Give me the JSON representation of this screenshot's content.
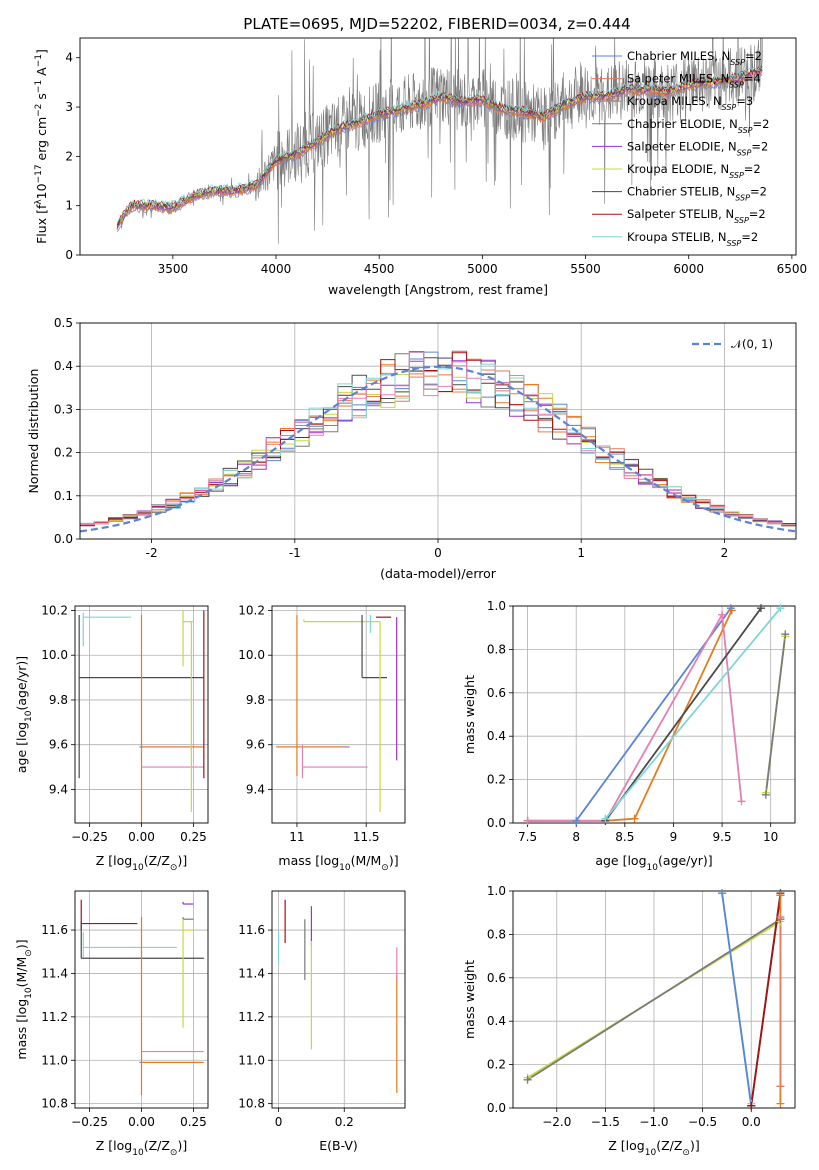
{
  "figure": {
    "title": "PLATE=0695, MJD=52202, FIBERID=0034, z=0.444"
  },
  "colors": {
    "Chabrier MILES": "#5b84d6",
    "Salpeter MILES": "#ea7a58",
    "Kroupa MILES": "#e87a1e",
    "Chabrier ELODIE": "#7a7a7a",
    "Salpeter ELODIE": "#9933cc",
    "Kroupa ELODIE": "#c8d840",
    "Chabrier STELIB": "#4a4a4a",
    "Salpeter STELIB": "#aa1111",
    "Kroupa STELIB": "#7fd6d6",
    "pink": "#e57fb3",
    "normal": "#5b84d6"
  },
  "chart_data": [
    {
      "id": "spectrum",
      "type": "line",
      "title": "PLATE=0695, MJD=52202, FIBERID=0034, z=0.444",
      "xlabel": "wavelength [Angstrom, rest frame]",
      "ylabel_parts": [
        "Flux [f",
        "λ",
        "10",
        "−17",
        " erg cm",
        "−2",
        " s",
        "−1",
        " A",
        "−1",
        "]"
      ],
      "xlim": [
        3050,
        6520
      ],
      "ylim": [
        0,
        4.4
      ],
      "xticks": [
        3500,
        4000,
        4500,
        5000,
        5500,
        6000,
        6500
      ],
      "yticks": [
        0,
        1,
        2,
        3,
        4
      ],
      "grid": false,
      "legend_position": "upper right",
      "legend": [
        {
          "name": "Chabrier MILES",
          "nssp": "2"
        },
        {
          "name": "Salpeter MILES",
          "nssp": "4"
        },
        {
          "name": "Kroupa MILES",
          "nssp": "3"
        },
        {
          "name": "Chabrier ELODIE",
          "nssp": "2"
        },
        {
          "name": "Salpeter ELODIE",
          "nssp": "2"
        },
        {
          "name": "Kroupa ELODIE",
          "nssp": "2"
        },
        {
          "name": "Chabrier STELIB",
          "nssp": "2"
        },
        {
          "name": "Salpeter STELIB",
          "nssp": "2"
        },
        {
          "name": "Kroupa STELIB",
          "nssp": "2"
        }
      ],
      "data_wavelength": [
        3230,
        3300,
        3400,
        3500,
        3600,
        3700,
        3800,
        3900,
        4000,
        4100,
        4200,
        4300,
        4400,
        4500,
        4600,
        4700,
        4800,
        4900,
        5000,
        5100,
        5200,
        5300,
        5400,
        5500,
        5600,
        5700,
        5800,
        5900,
        6000,
        6100,
        6200,
        6300,
        6360
      ],
      "data_flux": [
        0.6,
        1.0,
        1.0,
        0.9,
        1.2,
        1.3,
        1.3,
        1.4,
        1.9,
        2.1,
        2.3,
        2.6,
        2.7,
        2.9,
        3.0,
        3.1,
        3.3,
        3.1,
        3.2,
        3.0,
        2.9,
        2.8,
        3.1,
        3.3,
        3.2,
        3.4,
        3.4,
        3.3,
        3.5,
        3.5,
        3.6,
        3.7,
        3.8
      ],
      "model_wavelength": [
        3230,
        3300,
        3400,
        3500,
        3600,
        3700,
        3800,
        3900,
        4000,
        4100,
        4200,
        4300,
        4400,
        4500,
        4600,
        4700,
        4800,
        4900,
        5000,
        5100,
        5200,
        5300,
        5400,
        5500,
        5600,
        5700,
        5800,
        5900,
        6000,
        6100,
        6200,
        6300,
        6360
      ],
      "model_flux": [
        0.6,
        1.0,
        1.0,
        0.95,
        1.2,
        1.3,
        1.3,
        1.4,
        1.9,
        2.05,
        2.3,
        2.55,
        2.7,
        2.85,
        2.95,
        3.05,
        3.2,
        3.1,
        3.15,
        2.95,
        2.9,
        2.8,
        3.05,
        3.2,
        3.2,
        3.35,
        3.35,
        3.3,
        3.45,
        3.5,
        3.55,
        3.65,
        3.75
      ]
    },
    {
      "id": "residuals",
      "type": "histogram",
      "xlabel": "(data-model)/error",
      "ylabel": "Normed distribution",
      "xlim": [
        -2.5,
        2.5
      ],
      "ylim": [
        0,
        0.5
      ],
      "xticks": [
        -2,
        -1,
        0,
        1,
        2
      ],
      "yticks": [
        0.0,
        0.1,
        0.2,
        0.3,
        0.4,
        0.5
      ],
      "grid": true,
      "legend_position": "upper right",
      "legend": [
        {
          "name": "𝒩(0, 1)",
          "style": "dashed"
        }
      ],
      "bin_width": 0.1,
      "bin_start": -2.5,
      "curve": {
        "mean": 0,
        "sigma": 1
      }
    },
    {
      "id": "age_vs_Z",
      "type": "errorbar",
      "xlabel_parts": [
        "Z [log",
        "10",
        "(Z/Z",
        "⊙",
        ")]"
      ],
      "ylabel_parts": [
        "age  [log",
        "10",
        "(age/yr)]"
      ],
      "xlim": [
        -0.32,
        0.32
      ],
      "ylim": [
        9.25,
        10.22
      ],
      "xticks": [
        -0.25,
        0.0,
        0.25
      ],
      "xticklabels": [
        "−0.25",
        "0.00",
        "0.25"
      ],
      "yticks": [
        9.4,
        9.6,
        9.8,
        10.0,
        10.2
      ],
      "grid": true,
      "points": [
        {
          "series": "Chabrier STELIB",
          "x": -0.3,
          "xerr": [
            0,
            0.6
          ],
          "y": 9.9,
          "yerr": [
            0.45,
            0.28
          ]
        },
        {
          "series": "Kroupa STELIB",
          "x": -0.28,
          "xerr": [
            0,
            0.23
          ],
          "y": 10.17,
          "yerr": [
            0.13,
            0.02
          ]
        },
        {
          "series": "Chabrier MILES",
          "x": -0.01,
          "xerr": [
            0,
            0.3
          ],
          "y": 9.59,
          "yerr": [
            0,
            0
          ]
        },
        {
          "series": "Kroupa MILES",
          "x": 0.0,
          "xerr": [
            0,
            0.3
          ],
          "y": 9.59,
          "yerr": [
            0.45,
            0.59
          ]
        },
        {
          "series": "pink",
          "x": 0.0,
          "xerr": [
            0,
            0.3
          ],
          "y": 9.5,
          "yerr": [
            0,
            0
          ]
        },
        {
          "series": "Kroupa ELODIE",
          "x": 0.2,
          "xerr": [
            0,
            0.05
          ],
          "y": 10.15,
          "yerr": [
            0.2,
            0.05
          ]
        },
        {
          "series": "Salpeter STELIB",
          "x": 0.3,
          "xerr": [
            0,
            0
          ],
          "y": 10.15,
          "yerr": [
            0.7,
            0.05
          ]
        },
        {
          "series": "Kroupa ELODIE",
          "x": 0.24,
          "xerr": [
            0,
            0
          ],
          "y": 9.95,
          "yerr": [
            0.65,
            0.2
          ]
        }
      ]
    },
    {
      "id": "age_vs_mass",
      "type": "errorbar",
      "xlabel_parts": [
        "mass [log",
        "10",
        "(M/M",
        "⊙",
        ")]"
      ],
      "ylabel_parts": [],
      "xlim": [
        10.82,
        11.78
      ],
      "ylim": [
        9.25,
        10.22
      ],
      "xticks": [
        11.0,
        11.5
      ],
      "yticks": [
        9.4,
        9.6,
        9.8,
        10.0,
        10.2
      ],
      "grid": true,
      "points": [
        {
          "series": "Chabrier MILES",
          "x": 10.98,
          "xerr": [
            0.13,
            0.4
          ],
          "y": 9.59,
          "yerr": [
            0,
            0
          ]
        },
        {
          "series": "Kroupa MILES",
          "x": 11.0,
          "xerr": [
            0.15,
            0.35
          ],
          "y": 9.59,
          "yerr": [
            0.13,
            0.59
          ]
        },
        {
          "series": "pink",
          "x": 11.04,
          "xerr": [
            0,
            0.47
          ],
          "y": 9.5,
          "yerr": [
            0.05,
            0.1
          ]
        },
        {
          "series": "Kroupa ELODIE",
          "x": 11.05,
          "xerr": [
            0,
            0.55
          ],
          "y": 10.15,
          "yerr": [
            0,
            0.01
          ]
        },
        {
          "series": "Chabrier STELIB",
          "x": 11.47,
          "xerr": [
            0,
            0.18
          ],
          "y": 9.9,
          "yerr": [
            0,
            0.28
          ]
        },
        {
          "series": "Salpeter STELIB",
          "x": 11.63,
          "xerr": [
            0.06,
            0.05
          ],
          "y": 10.17,
          "yerr": [
            0,
            0
          ]
        },
        {
          "series": "Kroupa ELODIE",
          "x": 11.6,
          "xerr": [
            0,
            0
          ],
          "y": 9.95,
          "yerr": [
            0.65,
            0.2
          ]
        },
        {
          "series": "Salpeter ELODIE",
          "x": 11.72,
          "xerr": [
            0,
            0
          ],
          "y": 10.15,
          "yerr": [
            0.62,
            0.02
          ]
        },
        {
          "series": "Kroupa STELIB",
          "x": 11.53,
          "xerr": [
            0,
            0
          ],
          "y": 10.17,
          "yerr": [
            0.07,
            0.01
          ]
        }
      ]
    },
    {
      "id": "weight_vs_age",
      "type": "line",
      "xlabel_parts": [
        "age  [log",
        "10",
        "(age/yr)]"
      ],
      "ylabel": "mass weight",
      "xlim": [
        7.35,
        10.25
      ],
      "ylim": [
        0,
        1
      ],
      "xticks": [
        7.5,
        8.0,
        8.5,
        9.0,
        9.5,
        10.0
      ],
      "yticks": [
        0.0,
        0.2,
        0.4,
        0.6,
        0.8,
        1.0
      ],
      "grid": true,
      "series": [
        {
          "name": "Chabrier MILES",
          "x": [
            7.5,
            8.0,
            9.59
          ],
          "y": [
            0.01,
            0.01,
            0.99
          ]
        },
        {
          "name": "Kroupa MILES",
          "x": [
            7.5,
            8.3,
            8.6,
            9.6
          ],
          "y": [
            0.01,
            0.01,
            0.02,
            0.98
          ]
        },
        {
          "name": "pink",
          "x": [
            7.5,
            8.3,
            9.5,
            9.7
          ],
          "y": [
            0.01,
            0.01,
            0.96,
            0.1
          ]
        },
        {
          "name": "Chabrier STELIB",
          "x": [
            8.3,
            9.9
          ],
          "y": [
            0.01,
            0.99
          ]
        },
        {
          "name": "Kroupa STELIB",
          "x": [
            8.3,
            10.1
          ],
          "y": [
            0.02,
            0.99
          ]
        },
        {
          "name": "Kroupa ELODIE",
          "x": [
            9.95,
            10.15
          ],
          "y": [
            0.14,
            0.86
          ]
        },
        {
          "name": "Chabrier ELODIE",
          "x": [
            9.95,
            10.15
          ],
          "y": [
            0.13,
            0.87
          ]
        }
      ]
    },
    {
      "id": "mass_vs_Z",
      "type": "errorbar",
      "xlabel_parts": [
        "Z [log",
        "10",
        "(Z/Z",
        "⊙",
        ")]"
      ],
      "ylabel_parts": [
        "mass [log",
        "10",
        "(M/M",
        "⊙",
        ")]"
      ],
      "xlim": [
        -0.32,
        0.32
      ],
      "ylim": [
        10.78,
        11.78
      ],
      "xticks": [
        -0.25,
        0.0,
        0.25
      ],
      "xticklabels": [
        "−0.25",
        "0.00",
        "0.25"
      ],
      "yticks": [
        10.8,
        11.0,
        11.2,
        11.4,
        11.6
      ],
      "grid": true,
      "points": [
        {
          "series": "Salpeter STELIB",
          "x": -0.29,
          "xerr": [
            0,
            0.27
          ],
          "y": 11.63,
          "yerr": [
            0.03,
            0.11
          ]
        },
        {
          "series": "Kroupa STELIB",
          "x": -0.28,
          "xerr": [
            0,
            0.45
          ],
          "y": 11.52,
          "yerr": [
            0.05,
            0.07
          ]
        },
        {
          "series": "Chabrier STELIB",
          "x": -0.29,
          "xerr": [
            0,
            0.59
          ],
          "y": 11.47,
          "yerr": [
            0,
            0.17
          ]
        },
        {
          "series": "Salpeter ELODIE",
          "x": 0.2,
          "xerr": [
            0,
            0.05
          ],
          "y": 11.72,
          "yerr": [
            0,
            0.01
          ]
        },
        {
          "series": "Chabrier ELODIE",
          "x": 0.2,
          "xerr": [
            0,
            0.05
          ],
          "y": 11.65,
          "yerr": [
            0,
            0.01
          ]
        },
        {
          "series": "Kroupa ELODIE",
          "x": 0.2,
          "xerr": [
            0,
            0.05
          ],
          "y": 11.6,
          "yerr": [
            0.45,
            0.05
          ]
        },
        {
          "series": "pink",
          "x": 0.0,
          "xerr": [
            0,
            0.3
          ],
          "y": 11.04,
          "yerr": [
            0,
            0
          ]
        },
        {
          "series": "Chabrier MILES",
          "x": -0.01,
          "xerr": [
            0,
            0.3
          ],
          "y": 10.99,
          "yerr": [
            0,
            0
          ]
        },
        {
          "series": "Kroupa MILES",
          "x": 0.0,
          "xerr": [
            0,
            0.3
          ],
          "y": 10.99,
          "yerr": [
            0.15,
            0.67
          ]
        }
      ]
    },
    {
      "id": "mass_vs_EBV",
      "type": "errorbar",
      "xlabel": "E(B-V)",
      "ylabel_parts": [],
      "xlim": [
        -0.02,
        0.385
      ],
      "ylim": [
        10.78,
        11.78
      ],
      "xticks": [
        0.0,
        0.2
      ],
      "yticks": [
        10.8,
        11.0,
        11.2,
        11.4,
        11.6
      ],
      "grid": true,
      "points": [
        {
          "series": "Kroupa STELIB",
          "x": 0.0,
          "xerr": [
            0,
            0
          ],
          "y": 11.52,
          "yerr": [
            0.08,
            0.07
          ]
        },
        {
          "series": "Salpeter STELIB",
          "x": 0.02,
          "xerr": [
            0,
            0
          ],
          "y": 11.63,
          "yerr": [
            0.09,
            0.11
          ]
        },
        {
          "series": "Chabrier ELODIE",
          "x": 0.08,
          "xerr": [
            0,
            0
          ],
          "y": 11.5,
          "yerr": [
            0.13,
            0.15
          ]
        },
        {
          "series": "Salpeter ELODIE",
          "x": 0.1,
          "xerr": [
            0,
            0
          ],
          "y": 11.63,
          "yerr": [
            0.1,
            0.08
          ]
        },
        {
          "series": "Kroupa ELODIE",
          "x": 0.1,
          "xerr": [
            0,
            0
          ],
          "y": 11.3,
          "yerr": [
            0.25,
            0.25
          ]
        },
        {
          "series": "Kroupa MILES",
          "x": 0.36,
          "xerr": [
            0,
            0
          ],
          "y": 11.1,
          "yerr": [
            0.25,
            0.3
          ]
        },
        {
          "series": "pink",
          "x": 0.36,
          "xerr": [
            0,
            0
          ],
          "y": 11.42,
          "yerr": [
            0.05,
            0.1
          ]
        }
      ]
    },
    {
      "id": "weight_vs_Z",
      "type": "line",
      "xlabel_parts": [
        "Z [log",
        "10",
        "(Z/Z",
        "⊙",
        ")]"
      ],
      "ylabel": "mass weight",
      "xlim": [
        -2.45,
        0.45
      ],
      "ylim": [
        0,
        1
      ],
      "xticks": [
        -2.0,
        -1.5,
        -1.0,
        -0.5,
        0.0
      ],
      "xticklabels": [
        "−2.0",
        "−1.5",
        "−1.0",
        "−0.5",
        "0.0"
      ],
      "yticks": [
        0.0,
        0.2,
        0.4,
        0.6,
        0.8,
        1.0
      ],
      "grid": true,
      "series": [
        {
          "name": "Kroupa ELODIE",
          "x": [
            -2.3,
            0.3
          ],
          "y": [
            0.14,
            0.86
          ]
        },
        {
          "name": "Chabrier ELODIE",
          "x": [
            -2.3,
            0.3
          ],
          "y": [
            0.13,
            0.87
          ]
        },
        {
          "name": "Kroupa STELIB",
          "x": [
            -0.3,
            0.0
          ],
          "y": [
            0.99,
            0.02
          ]
        },
        {
          "name": "Chabrier MILES",
          "x": [
            -0.3,
            0.0
          ],
          "y": [
            0.99,
            0.01
          ]
        },
        {
          "name": "Chabrier STELIB",
          "x": [
            0.0,
            0.3
          ],
          "y": [
            0.01,
            0.99
          ]
        },
        {
          "name": "Salpeter STELIB",
          "x": [
            0.0,
            0.3
          ],
          "y": [
            0.01,
            0.98
          ]
        },
        {
          "name": "Kroupa MILES",
          "x": [
            0.3,
            0.3
          ],
          "y": [
            0.02,
            0.98
          ]
        },
        {
          "name": "Salpeter MILES",
          "x": [
            0.3,
            0.3
          ],
          "y": [
            0.1,
            0.88
          ]
        }
      ]
    }
  ]
}
